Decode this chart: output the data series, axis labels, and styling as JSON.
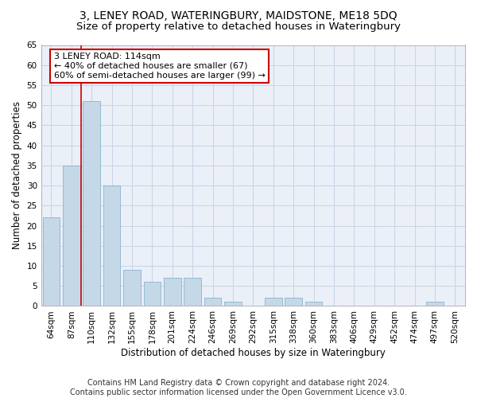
{
  "title": "3, LENEY ROAD, WATERINGBURY, MAIDSTONE, ME18 5DQ",
  "subtitle": "Size of property relative to detached houses in Wateringbury",
  "xlabel": "Distribution of detached houses by size in Wateringbury",
  "ylabel": "Number of detached properties",
  "categories": [
    "64sqm",
    "87sqm",
    "110sqm",
    "132sqm",
    "155sqm",
    "178sqm",
    "201sqm",
    "224sqm",
    "246sqm",
    "269sqm",
    "292sqm",
    "315sqm",
    "338sqm",
    "360sqm",
    "383sqm",
    "406sqm",
    "429sqm",
    "452sqm",
    "474sqm",
    "497sqm",
    "520sqm"
  ],
  "values": [
    22,
    35,
    51,
    30,
    9,
    6,
    7,
    7,
    2,
    1,
    0,
    2,
    2,
    1,
    0,
    0,
    0,
    0,
    0,
    1,
    0
  ],
  "bar_color": "#c5d8e8",
  "bar_edge_color": "#7aaac8",
  "grid_color": "#c8d4e4",
  "background_color": "#eaeff8",
  "vline_x_index": 2,
  "annotation_line1": "3 LENEY ROAD: 114sqm",
  "annotation_line2": "← 40% of detached houses are smaller (67)",
  "annotation_line3": "60% of semi-detached houses are larger (99) →",
  "annotation_box_color": "#ffffff",
  "annotation_box_edgecolor": "#cc0000",
  "annotation_text_fontsize": 8,
  "vline_color": "#cc0000",
  "ylim": [
    0,
    65
  ],
  "yticks": [
    0,
    5,
    10,
    15,
    20,
    25,
    30,
    35,
    40,
    45,
    50,
    55,
    60,
    65
  ],
  "footer_line1": "Contains HM Land Registry data © Crown copyright and database right 2024.",
  "footer_line2": "Contains public sector information licensed under the Open Government Licence v3.0.",
  "title_fontsize": 10,
  "subtitle_fontsize": 9.5,
  "xlabel_fontsize": 8.5,
  "ylabel_fontsize": 8.5,
  "footer_fontsize": 7,
  "tick_fontsize": 7.5
}
